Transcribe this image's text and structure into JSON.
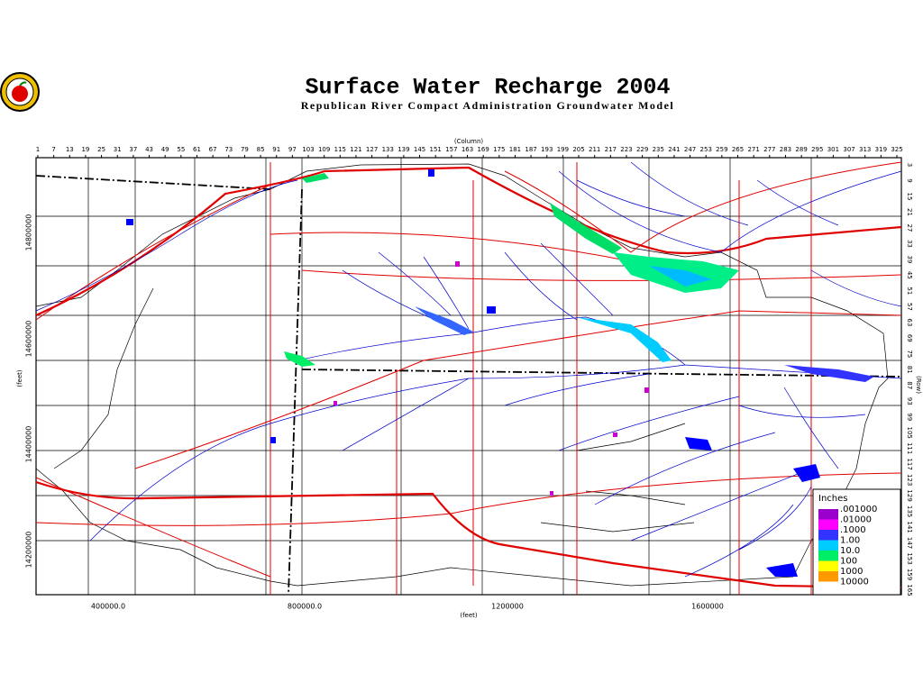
{
  "header": {
    "title": "Surface Water Recharge 2004",
    "subtitle": "Republican River Compact Administration Groundwater Model"
  },
  "map": {
    "column_title": "(Column)",
    "columns": [
      1,
      7,
      13,
      19,
      25,
      31,
      37,
      43,
      49,
      55,
      61,
      67,
      73,
      79,
      85,
      91,
      97,
      103,
      109,
      115,
      121,
      127,
      133,
      139,
      145,
      151,
      157,
      163,
      169,
      175,
      181,
      187,
      193,
      199,
      205,
      211,
      217,
      223,
      229,
      235,
      241,
      247,
      253,
      259,
      265,
      271,
      277,
      283,
      289,
      295,
      301,
      307,
      313,
      319,
      325
    ],
    "row_title": "(Row)",
    "rows": [
      3,
      9,
      15,
      21,
      27,
      33,
      39,
      45,
      51,
      57,
      63,
      69,
      75,
      81,
      87,
      93,
      99,
      105,
      111,
      117,
      123,
      129,
      135,
      141,
      147,
      153,
      159,
      165
    ],
    "x_title": "(feet)",
    "x_labels": [
      "400000.0",
      "800000.0",
      "1200000",
      "1600000"
    ],
    "y_title": "(feet)",
    "y_labels": [
      "14800000",
      "14600000",
      "14400000",
      "14200000"
    ]
  },
  "legend": {
    "title": "Inches",
    "entries": [
      ".001000",
      ".01000",
      ".1000",
      "1.00",
      "10.0",
      "100",
      "1000",
      "10000"
    ],
    "colors": [
      "#9900cc",
      "#ff00ff",
      "#3333ff",
      "#00ccff",
      "#00ee66",
      "#ffff00",
      "#ff9900"
    ]
  }
}
